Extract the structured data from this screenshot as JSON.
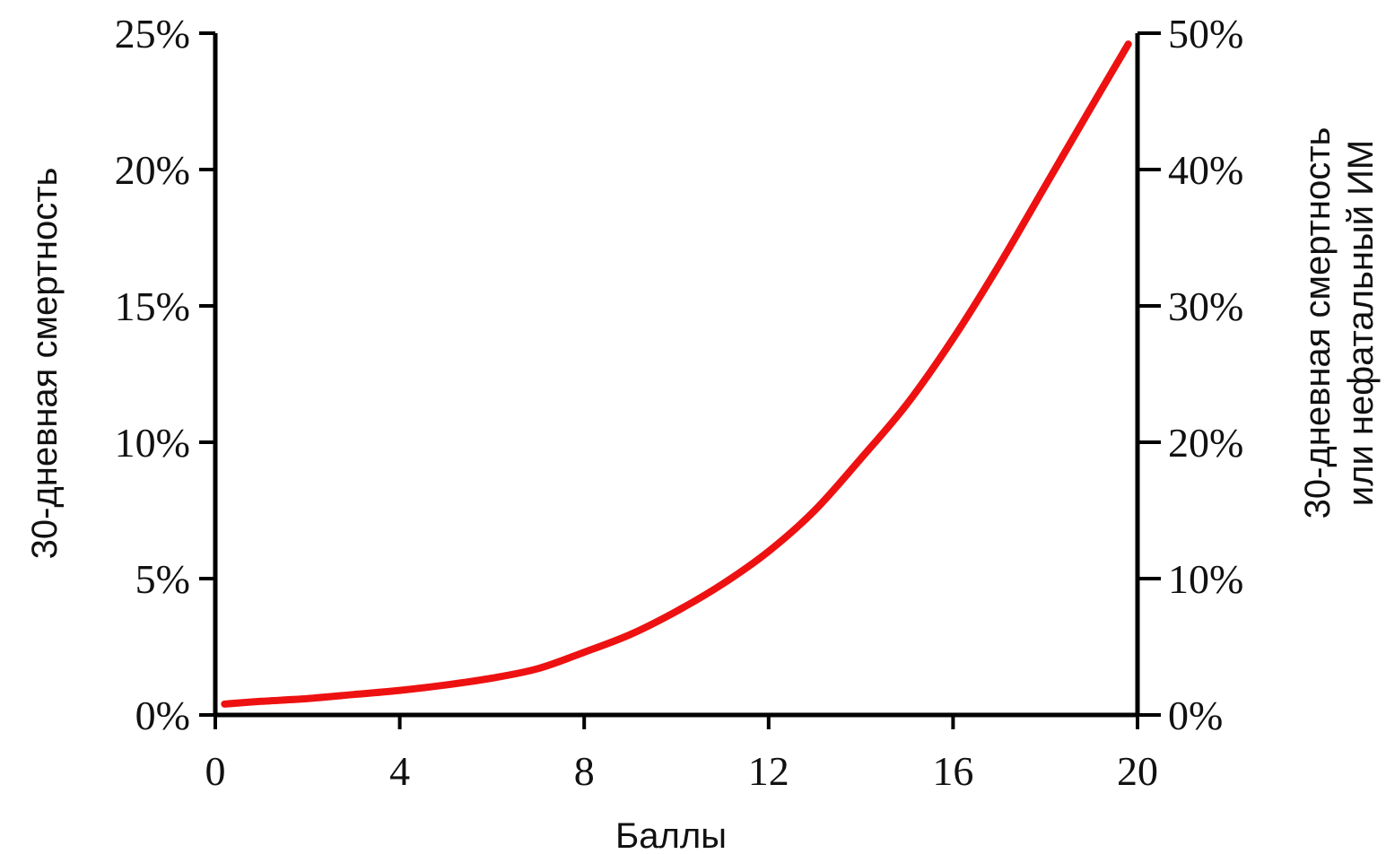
{
  "chart_data": {
    "type": "line",
    "title": "",
    "xlabel": "Баллы",
    "ylabel_left": "30-дневная смертность",
    "ylabel_right": [
      "30-дневная смертность",
      "или нефатальный ИМ"
    ],
    "xlim": [
      0,
      20
    ],
    "ylim_left": [
      0,
      25
    ],
    "ylim_right": [
      0,
      50
    ],
    "x_ticks": [
      "0",
      "4",
      "8",
      "12",
      "16",
      "20"
    ],
    "y_ticks_left": [
      "0%",
      "5%",
      "10%",
      "15%",
      "20%",
      "25%"
    ],
    "y_ticks_right": [
      "0%",
      "10%",
      "20%",
      "30%",
      "40%",
      "50%"
    ],
    "grid": false,
    "series": [
      {
        "color": "#ee1111",
        "x": [
          0.2,
          1,
          2,
          3,
          4,
          5,
          6,
          7,
          8,
          9,
          10,
          11,
          12,
          13,
          14,
          15,
          16,
          17,
          18,
          19,
          19.8
        ],
        "y": [
          0.4,
          0.5,
          0.6,
          0.75,
          0.9,
          1.1,
          1.35,
          1.7,
          2.3,
          2.95,
          3.8,
          4.8,
          6.0,
          7.5,
          9.4,
          11.4,
          13.8,
          16.5,
          19.4,
          22.3,
          24.6
        ]
      }
    ]
  }
}
